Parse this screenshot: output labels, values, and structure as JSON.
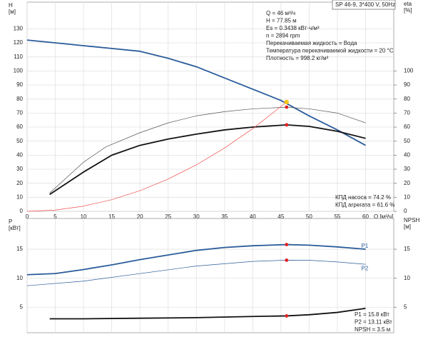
{
  "chart_data": [
    {
      "type": "line",
      "title": "SP 46-9, 3*400 V, 50Hz",
      "ylabel": [
        "H",
        "[м]"
      ],
      "y2label": [
        "eta",
        "[%]"
      ],
      "xlabel": "Q [м³/ч]",
      "info": [
        "Q = 46 м³/ч",
        "H = 77.85 м",
        "Es = 0.3438 кВт·ч/м³",
        "n = 2894 rpm",
        "Перекачиваемая жидкость = Вода",
        "Температура перекачиваемой жидкости = 20 °C",
        "Плотность = 998.2 кг/м³"
      ],
      "notes": [
        "КПД насоса = 74.2 %",
        "КПД агрегата = 61.6 %"
      ],
      "xlim": [
        0,
        65
      ],
      "xticks": [
        0,
        5,
        10,
        15,
        20,
        25,
        30,
        35,
        40,
        45,
        50,
        55,
        60
      ],
      "ylim": [
        0,
        149
      ],
      "yticks": [
        0,
        10,
        20,
        30,
        40,
        50,
        60,
        70,
        80,
        90,
        100,
        110,
        120,
        130
      ],
      "y2lim": [
        0,
        149
      ],
      "y2ticks": [
        0,
        10,
        20,
        30,
        40,
        50,
        60,
        70,
        80,
        90,
        100
      ],
      "grid": true,
      "series": [
        {
          "color": "#2a5c9a",
          "width": 1.8,
          "x": [
            0,
            5,
            10,
            15,
            20,
            25,
            30,
            35,
            40,
            45,
            50,
            55,
            60
          ],
          "values": [
            122,
            120,
            118,
            116,
            114,
            109,
            103,
            95,
            87,
            79,
            68,
            58,
            47
          ]
        },
        {
          "color": "#555555",
          "width": 0.7,
          "axis": "y2",
          "x": [
            4,
            10,
            14,
            20,
            25,
            30,
            35,
            40,
            46,
            50,
            55,
            60
          ],
          "values": [
            13,
            35,
            46,
            56,
            63,
            68,
            71,
            73,
            74.2,
            73,
            70,
            63
          ]
        },
        {
          "color": "#111111",
          "width": 1.8,
          "axis": "y2",
          "x": [
            4,
            10,
            15,
            20,
            25,
            30,
            35,
            40,
            46,
            50,
            55,
            60
          ],
          "values": [
            12,
            28,
            40,
            47,
            51.5,
            55,
            58,
            60,
            61.6,
            60.5,
            57,
            52
          ]
        },
        {
          "color": "#f05050",
          "width": 0.7,
          "x": [
            0,
            5,
            10,
            15,
            20,
            25,
            30,
            35,
            40,
            46
          ],
          "values": [
            0,
            0.9,
            3.7,
            8.3,
            14.7,
            23,
            33.1,
            45.1,
            58.9,
            77.85
          ]
        }
      ],
      "points": [
        {
          "x": 46,
          "y": 77.85,
          "color": "#f5c518"
        },
        {
          "x": 46,
          "y": 74.2,
          "color": "#e02020",
          "axis": "y2"
        },
        {
          "x": 46,
          "y": 61.6,
          "color": "#e02020",
          "axis": "y2"
        }
      ]
    },
    {
      "type": "line",
      "ylabel": [
        "P",
        "[кВт]"
      ],
      "y2label": [
        "NPSH",
        "[м]"
      ],
      "readings": [
        "P1 = 15.8 кВт",
        "P2 = 13.11 кВт",
        "NPSH = 3.5 м"
      ],
      "xlim": [
        0,
        65
      ],
      "xticks": [
        0,
        5,
        10,
        15,
        20,
        25,
        30,
        35,
        40,
        45,
        50,
        55,
        60
      ],
      "x_tick_labels": false,
      "ylim": [
        0.6,
        20.3
      ],
      "yticks": [
        5,
        10,
        15
      ],
      "y2lim": [
        0.6,
        20.3
      ],
      "y2ticks": [
        5,
        10,
        15
      ],
      "grid": true,
      "series": [
        {
          "label": "P1",
          "color": "#2a5c9a",
          "width": 1.8,
          "x": [
            0,
            5,
            10,
            15,
            20,
            25,
            30,
            35,
            40,
            46,
            50,
            55,
            60
          ],
          "values": [
            10.6,
            10.8,
            11.5,
            12.3,
            13.2,
            14.0,
            14.8,
            15.3,
            15.6,
            15.8,
            15.7,
            15.4,
            15.0
          ]
        },
        {
          "label": "P2",
          "color": "#2a5c9a",
          "width": 0.7,
          "x": [
            0,
            10,
            20,
            30,
            40,
            46,
            50,
            55,
            60
          ],
          "values": [
            8.7,
            9.5,
            10.8,
            12.1,
            12.9,
            13.11,
            13.1,
            12.8,
            12.4
          ]
        },
        {
          "color": "#111111",
          "width": 1.8,
          "axis": "y2",
          "x": [
            4,
            10,
            20,
            30,
            40,
            46,
            50,
            55,
            60
          ],
          "values": [
            3.0,
            3.0,
            3.1,
            3.2,
            3.4,
            3.5,
            3.7,
            4.1,
            4.8
          ]
        }
      ],
      "points": [
        {
          "x": 46,
          "y": 15.8,
          "color": "#e02020"
        },
        {
          "x": 46,
          "y": 13.11,
          "color": "#e02020"
        },
        {
          "x": 46,
          "y": 3.5,
          "color": "#e02020",
          "axis": "y2"
        }
      ]
    }
  ]
}
